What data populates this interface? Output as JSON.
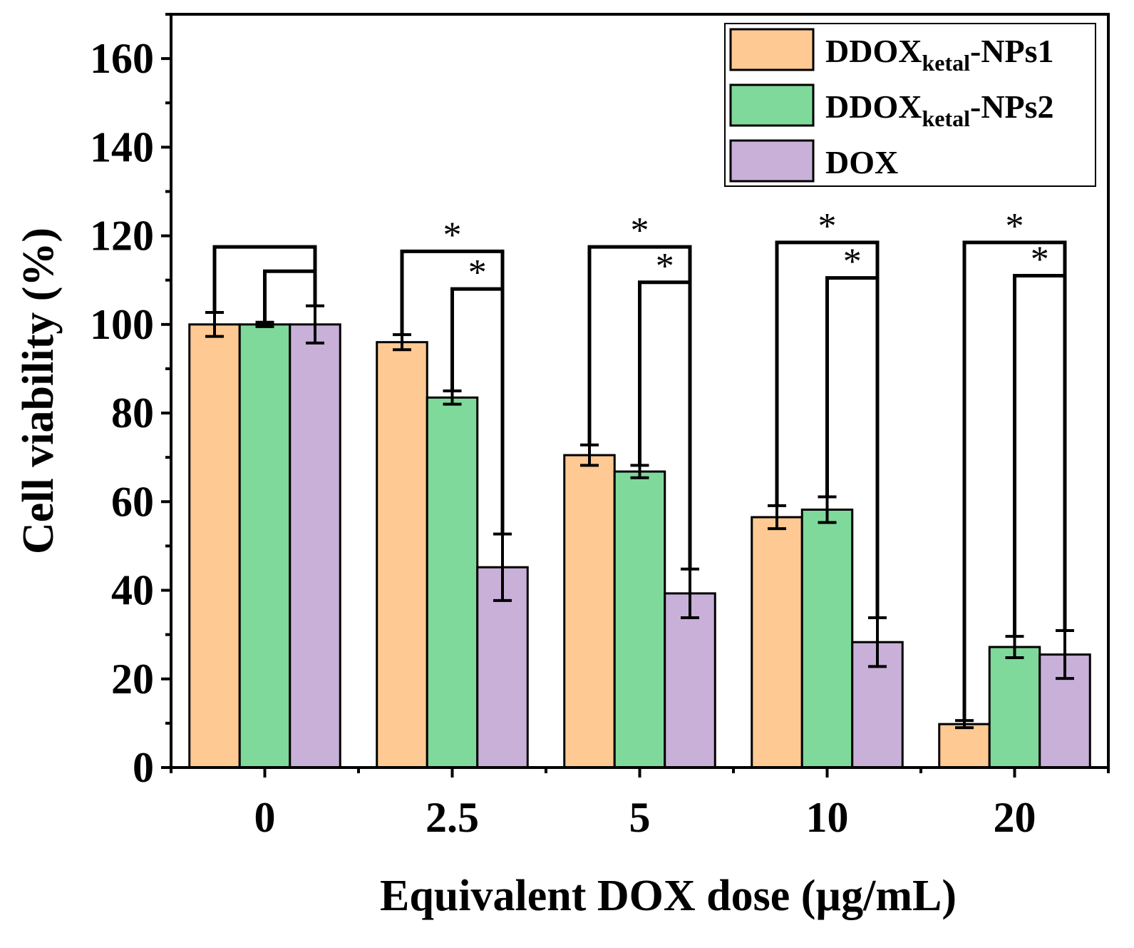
{
  "chart_data": {
    "type": "bar",
    "title": "",
    "xlabel": "Equivalent DOX dose (µg/mL)",
    "ylabel": "Cell viability (%)",
    "categories": [
      "0",
      "2.5",
      "5",
      "10",
      "20"
    ],
    "ylim": [
      0,
      170
    ],
    "yticks": [
      0,
      20,
      40,
      60,
      80,
      100,
      120,
      140,
      160
    ],
    "grid": false,
    "legend_position": "top-right",
    "series": [
      {
        "name": "DDOXketal-NPs1",
        "label_main": "DDOX",
        "label_sub": "ketal",
        "label_suffix": "-NPs1",
        "color": "#FFC993",
        "values": [
          100,
          96,
          70.5,
          56.5,
          9.8
        ],
        "errors": [
          2.7,
          1.7,
          2.3,
          2.6,
          0.8
        ]
      },
      {
        "name": "DDOXketal-NPs2",
        "label_main": "DDOX",
        "label_sub": "ketal",
        "label_suffix": "-NPs2",
        "color": "#7FD99B",
        "values": [
          100,
          83.5,
          66.8,
          58.2,
          27.2
        ],
        "errors": [
          0.5,
          1.5,
          1.4,
          2.9,
          2.4
        ]
      },
      {
        "name": "DOX",
        "label_main": "DOX",
        "label_sub": "",
        "label_suffix": "",
        "color": "#C8B0D8",
        "values": [
          100,
          45.2,
          39.3,
          28.3,
          25.5
        ],
        "errors": [
          4.2,
          7.5,
          5.5,
          5.5,
          5.4
        ]
      }
    ],
    "significance": [
      {
        "group": 0,
        "from": 0,
        "to": 2,
        "level": 117.5,
        "star": ""
      },
      {
        "group": 0,
        "from": 1,
        "to": 2,
        "level": 112,
        "star": ""
      },
      {
        "group": 1,
        "from": 0,
        "to": 2,
        "level": 116.5,
        "star": "*"
      },
      {
        "group": 1,
        "from": 1,
        "to": 2,
        "level": 108,
        "star": "*"
      },
      {
        "group": 2,
        "from": 0,
        "to": 2,
        "level": 117.5,
        "star": "*"
      },
      {
        "group": 2,
        "from": 1,
        "to": 2,
        "level": 109.5,
        "star": "*"
      },
      {
        "group": 3,
        "from": 0,
        "to": 2,
        "level": 118.5,
        "star": "*"
      },
      {
        "group": 3,
        "from": 1,
        "to": 2,
        "level": 110.5,
        "star": "*"
      },
      {
        "group": 4,
        "from": 0,
        "to": 2,
        "level": 118.5,
        "star": "*"
      },
      {
        "group": 4,
        "from": 1,
        "to": 2,
        "level": 111,
        "star": "*"
      }
    ]
  }
}
